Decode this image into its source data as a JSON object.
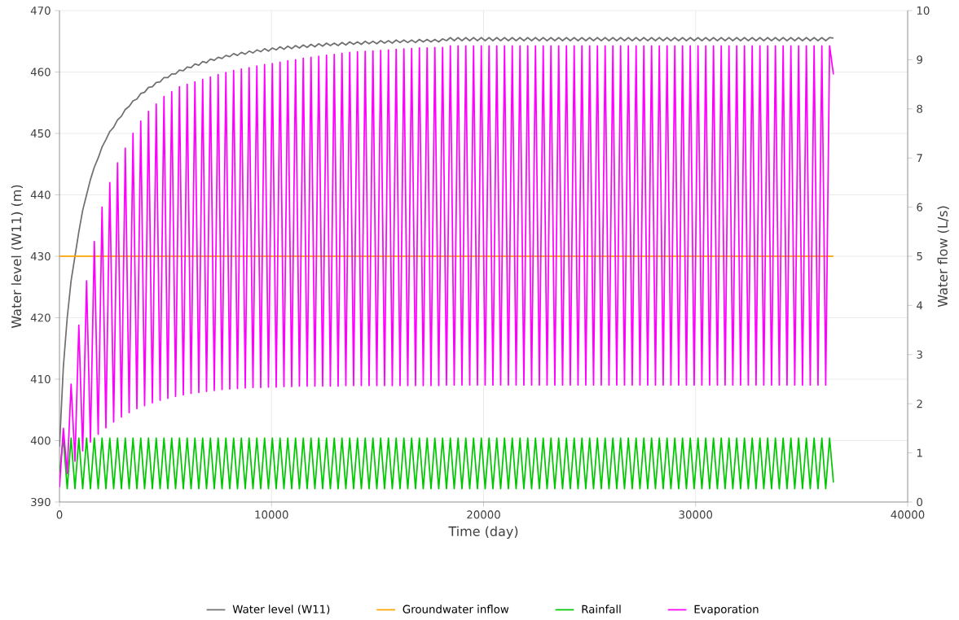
{
  "chart_data": {
    "type": "line",
    "xlabel": "Time (day)",
    "ylabel": "Water level (W11) (m)",
    "y2label": "Water flow (L/s)",
    "xlim": [
      0,
      40000
    ],
    "xticks": [
      0,
      10000,
      20000,
      30000,
      40000
    ],
    "ylim": [
      390,
      470
    ],
    "yticks": [
      390,
      400,
      410,
      420,
      430,
      440,
      450,
      460,
      470
    ],
    "y2lim": [
      0,
      10
    ],
    "y2ticks": [
      0,
      1,
      2,
      3,
      4,
      5,
      6,
      7,
      8,
      9,
      10
    ],
    "grid": true,
    "legend": "bottom",
    "marker": "none",
    "line_style": "solid",
    "x": [
      0,
      182.5,
      365,
      547.5,
      730,
      912.5,
      1095,
      1277.5,
      1460,
      1642.5,
      1825,
      2007.5,
      2190,
      2372.5,
      2555,
      2737.5,
      2920,
      3102.5,
      3285,
      3467.5,
      3650,
      3832.5,
      4015,
      4197.5,
      4380,
      4562.5,
      4745,
      4927.5,
      5110,
      5292.5,
      5475,
      5657.5,
      5840,
      6022.5,
      6205,
      6387.5,
      6570,
      6752.5,
      6935,
      7117.5,
      7300,
      7482.5,
      7665,
      7847.5,
      8030,
      8212.5,
      8395,
      8577.5,
      8760,
      8942.5,
      9125,
      9307.5,
      9490,
      9672.5,
      9855,
      10037.5,
      10220,
      10402.5,
      10585,
      10767.5,
      10950,
      11132.5,
      11315,
      11497.5,
      11680,
      11862.5,
      12045,
      12227.5,
      12410,
      12592.5,
      12775,
      12957.5,
      13140,
      13322.5,
      13505,
      13687.5,
      13870,
      14052.5,
      14235,
      14417.5,
      14600,
      14782.5,
      14965,
      15147.5,
      15330,
      15512.5,
      15695,
      15877.5,
      16060,
      16242.5,
      16425,
      16607.5,
      16790,
      16972.5,
      17155,
      17337.5,
      17520,
      17702.5,
      17885,
      18067.5,
      18250,
      18432.5,
      18615,
      18797.5,
      18980,
      19162.5,
      19345,
      19527.5,
      19710,
      19892.5,
      20075,
      20257.5,
      20440,
      20622.5,
      20805,
      20987.5,
      21170,
      21352.5,
      21535,
      21717.5,
      21900,
      22082.5,
      22265,
      22447.5,
      22630,
      22812.5,
      22995,
      23177.5,
      23360,
      23542.5,
      23725,
      23907.5,
      24090,
      24272.5,
      24455,
      24637.5,
      24820,
      25002.5,
      25185,
      25367.5,
      25550,
      25732.5,
      25915,
      26097.5,
      26280,
      26462.5,
      26645,
      26827.5,
      27010,
      27192.5,
      27375,
      27557.5,
      27740,
      27922.5,
      28105,
      28287.5,
      28470,
      28652.5,
      28835,
      29017.5,
      29200,
      29382.5,
      29565,
      29747.5,
      29930,
      30112.5,
      30295,
      30477.5,
      30660,
      30842.5,
      31025,
      31207.5,
      31390,
      31572.5,
      31755,
      31937.5,
      32120,
      32302.5,
      32485,
      32667.5,
      32850,
      33032.5,
      33215,
      33397.5,
      33580,
      33762.5,
      33945,
      34127.5,
      34310,
      34492.5,
      34675,
      34857.5,
      35040,
      35222.5,
      35405,
      35587.5,
      35770,
      35952.5,
      36135,
      36317.5,
      36500
    ],
    "series": [
      {
        "name": "Water level (W11)",
        "color": "#707070",
        "values": [
          399,
          412,
          420,
          426,
          430,
          434,
          437.5,
          440,
          442.5,
          444.5,
          446,
          447.8,
          449,
          450.3,
          451,
          452.2,
          452.8,
          453.9,
          454.4,
          455.3,
          455.6,
          456.5,
          456.7,
          457.5,
          457.6,
          458.3,
          458.4,
          459.1,
          459.1,
          459.7,
          459.7,
          460.3,
          460.2,
          460.8,
          460.7,
          461.3,
          461.1,
          461.7,
          461.5,
          462.1,
          461.9,
          462.4,
          462.2,
          462.7,
          462.5,
          463,
          462.7,
          463.2,
          462.9,
          463.4,
          463.1,
          463.6,
          463.3,
          463.8,
          463.4,
          463.9,
          463.6,
          464.1,
          463.7,
          464.2,
          463.8,
          464.3,
          463.9,
          464.4,
          464,
          464.5,
          464.1,
          464.6,
          464.2,
          464.7,
          464.3,
          464.7,
          464.3,
          464.8,
          464.4,
          464.9,
          464.5,
          464.9,
          464.5,
          465,
          464.6,
          465,
          464.6,
          465.1,
          464.7,
          465.1,
          464.7,
          465.2,
          464.8,
          465.2,
          464.8,
          465.2,
          464.8,
          465.3,
          464.9,
          465.3,
          464.9,
          465.3,
          464.9,
          465.4,
          465.1,
          465.6,
          465.1,
          465.6,
          465.1,
          465.6,
          465.1,
          465.6,
          465.1,
          465.6,
          465.1,
          465.6,
          465.1,
          465.6,
          465.1,
          465.6,
          465.1,
          465.6,
          465.1,
          465.6,
          465.1,
          465.6,
          465.1,
          465.6,
          465.1,
          465.6,
          465.1,
          465.6,
          465.1,
          465.6,
          465.1,
          465.6,
          465.1,
          465.6,
          465.1,
          465.6,
          465.1,
          465.6,
          465.1,
          465.6,
          465.1,
          465.6,
          465.1,
          465.6,
          465.1,
          465.6,
          465.1,
          465.6,
          465.1,
          465.6,
          465.1,
          465.6,
          465.1,
          465.6,
          465.1,
          465.6,
          465.1,
          465.6,
          465.1,
          465.6,
          465.1,
          465.6,
          465.1,
          465.6,
          465.1,
          465.6,
          465.1,
          465.6,
          465.1,
          465.6,
          465.1,
          465.6,
          465.1,
          465.6,
          465.1,
          465.6,
          465.1,
          465.6,
          465.1,
          465.6,
          465.1,
          465.6,
          465.1,
          465.6,
          465.1,
          465.6,
          465.1,
          465.6,
          465.1,
          465.6,
          465.1,
          465.6,
          465.1,
          465.6,
          465.1,
          465.6,
          465.1,
          465.6,
          465.1,
          465.6,
          465.5
        ]
      },
      {
        "name": "Groundwater inflow",
        "color": "#ffa500",
        "axis": "y2",
        "x": [
          0,
          36500
        ],
        "values": [
          5,
          5
        ]
      },
      {
        "name": "Rainfall",
        "color": "#00c800",
        "axis": "y2",
        "values": [
          0.6,
          1.3,
          0.27,
          1.3,
          0.27,
          1.3,
          0.27,
          1.3,
          0.27,
          1.3,
          0.27,
          1.3,
          0.27,
          1.3,
          0.27,
          1.3,
          0.27,
          1.3,
          0.27,
          1.3,
          0.27,
          1.3,
          0.27,
          1.3,
          0.27,
          1.3,
          0.27,
          1.3,
          0.27,
          1.3,
          0.27,
          1.3,
          0.27,
          1.3,
          0.27,
          1.3,
          0.27,
          1.3,
          0.27,
          1.3,
          0.27,
          1.3,
          0.27,
          1.3,
          0.27,
          1.3,
          0.27,
          1.3,
          0.27,
          1.3,
          0.27,
          1.3,
          0.27,
          1.3,
          0.27,
          1.3,
          0.27,
          1.3,
          0.27,
          1.3,
          0.27,
          1.3,
          0.27,
          1.3,
          0.27,
          1.3,
          0.27,
          1.3,
          0.27,
          1.3,
          0.27,
          1.3,
          0.27,
          1.3,
          0.27,
          1.3,
          0.27,
          1.3,
          0.27,
          1.3,
          0.27,
          1.3,
          0.27,
          1.3,
          0.27,
          1.3,
          0.27,
          1.3,
          0.27,
          1.3,
          0.27,
          1.3,
          0.27,
          1.3,
          0.27,
          1.3,
          0.27,
          1.3,
          0.27,
          1.3,
          0.27,
          1.3,
          0.27,
          1.3,
          0.27,
          1.3,
          0.27,
          1.3,
          0.27,
          1.3,
          0.27,
          1.3,
          0.27,
          1.3,
          0.27,
          1.3,
          0.27,
          1.3,
          0.27,
          1.3,
          0.27,
          1.3,
          0.27,
          1.3,
          0.27,
          1.3,
          0.27,
          1.3,
          0.27,
          1.3,
          0.27,
          1.3,
          0.27,
          1.3,
          0.27,
          1.3,
          0.27,
          1.3,
          0.27,
          1.3,
          0.27,
          1.3,
          0.27,
          1.3,
          0.27,
          1.3,
          0.27,
          1.3,
          0.27,
          1.3,
          0.27,
          1.3,
          0.27,
          1.3,
          0.27,
          1.3,
          0.27,
          1.3,
          0.27,
          1.3,
          0.27,
          1.3,
          0.27,
          1.3,
          0.27,
          1.3,
          0.27,
          1.3,
          0.27,
          1.3,
          0.27,
          1.3,
          0.27,
          1.3,
          0.27,
          1.3,
          0.27,
          1.3,
          0.27,
          1.3,
          0.27,
          1.3,
          0.27,
          1.3,
          0.27,
          1.3,
          0.27,
          1.3,
          0.27,
          1.3,
          0.27,
          1.3,
          0.27,
          1.3,
          0.27,
          1.3,
          0.27,
          1.3,
          0.27,
          1.3,
          0.4
        ]
      },
      {
        "name": "Evaporation",
        "color": "#ff00ff",
        "axis": "y2",
        "values": [
          0.3,
          1.5,
          0.58,
          2.4,
          0.83,
          3.6,
          1.04,
          4.5,
          1.22,
          5.3,
          1.38,
          6.0,
          1.51,
          6.5,
          1.63,
          6.9,
          1.73,
          7.2,
          1.82,
          7.5,
          1.9,
          7.75,
          1.96,
          7.95,
          2.02,
          8.1,
          2.07,
          8.25,
          2.11,
          8.35,
          2.15,
          8.45,
          2.18,
          8.5,
          2.21,
          8.55,
          2.23,
          8.6,
          2.25,
          8.65,
          2.27,
          8.7,
          2.29,
          8.74,
          2.3,
          8.78,
          2.31,
          8.81,
          2.32,
          8.84,
          2.33,
          8.87,
          2.33,
          8.9,
          2.34,
          8.92,
          2.34,
          8.95,
          2.35,
          8.98,
          2.35,
          9.0,
          2.36,
          9.03,
          2.36,
          9.05,
          2.36,
          9.07,
          2.36,
          9.09,
          2.36,
          9.11,
          2.36,
          9.13,
          2.37,
          9.15,
          2.37,
          9.16,
          2.37,
          9.17,
          2.37,
          9.18,
          2.37,
          9.19,
          2.37,
          9.2,
          2.37,
          9.21,
          2.37,
          9.22,
          2.37,
          9.23,
          2.37,
          9.24,
          2.37,
          9.24,
          2.37,
          9.25,
          2.37,
          9.25,
          2.38,
          9.28,
          2.38,
          9.28,
          2.38,
          9.28,
          2.38,
          9.28,
          2.38,
          9.28,
          2.38,
          9.28,
          2.38,
          9.28,
          2.38,
          9.28,
          2.38,
          9.28,
          2.38,
          9.28,
          2.38,
          9.28,
          2.38,
          9.28,
          2.38,
          9.28,
          2.38,
          9.28,
          2.38,
          9.28,
          2.38,
          9.28,
          2.38,
          9.28,
          2.38,
          9.28,
          2.38,
          9.28,
          2.38,
          9.28,
          2.38,
          9.28,
          2.38,
          9.28,
          2.38,
          9.28,
          2.38,
          9.28,
          2.38,
          9.28,
          2.38,
          9.28,
          2.38,
          9.28,
          2.38,
          9.28,
          2.38,
          9.28,
          2.38,
          9.28,
          2.38,
          9.28,
          2.38,
          9.28,
          2.38,
          9.28,
          2.38,
          9.28,
          2.38,
          9.28,
          2.38,
          9.28,
          2.38,
          9.28,
          2.38,
          9.28,
          2.38,
          9.28,
          2.38,
          9.28,
          2.38,
          9.28,
          2.38,
          9.28,
          2.38,
          9.28,
          2.38,
          9.28,
          2.38,
          9.28,
          2.38,
          9.28,
          2.38,
          9.28,
          2.38,
          9.28,
          2.38,
          9.28,
          2.38,
          9.28,
          8.7
        ]
      }
    ]
  }
}
